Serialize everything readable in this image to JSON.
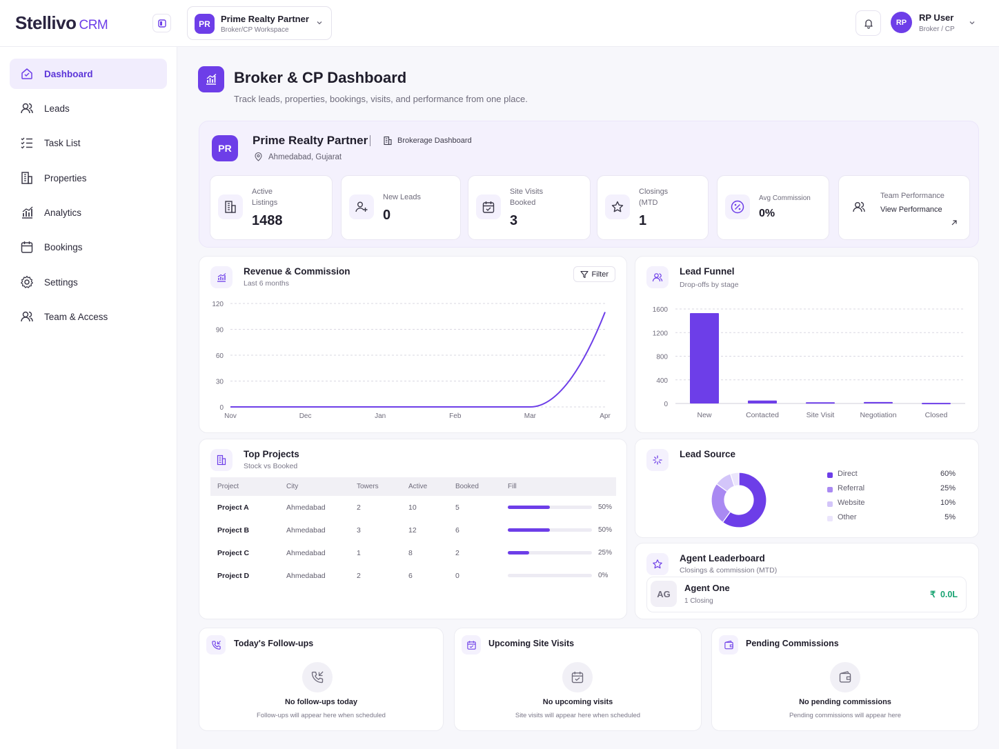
{
  "app": {
    "logo_main": "Stellivo",
    "logo_suffix": "CRM"
  },
  "workspace": {
    "initials": "PR",
    "name": "Prime Realty Partner",
    "subtitle": "Broker/CP Workspace"
  },
  "user": {
    "initials": "RP",
    "name": "RP User",
    "role": "Broker / CP"
  },
  "sidebar": {
    "items": [
      {
        "label": "Dashboard",
        "icon": "dashboard-icon",
        "active": true
      },
      {
        "label": "Leads",
        "icon": "users-icon"
      },
      {
        "label": "Task List",
        "icon": "task-list-icon"
      },
      {
        "label": "Properties",
        "icon": "building-icon"
      },
      {
        "label": "Analytics",
        "icon": "chart-icon"
      },
      {
        "label": "Bookings",
        "icon": "calendar-icon"
      },
      {
        "label": "Settings",
        "icon": "gear-icon"
      },
      {
        "label": "Team & Access",
        "icon": "team-icon"
      }
    ]
  },
  "page": {
    "title": "Broker & CP Dashboard",
    "subtitle": "Track leads, properties, bookings, visits, and performance from one place."
  },
  "org": {
    "initials": "PR",
    "name": "Prime Realty Partner",
    "dashboard_label": "Brokerage Dashboard",
    "location": "Ahmedabad, Gujarat"
  },
  "stats": [
    {
      "label_line1": "Active",
      "label_line2": "Listings",
      "value": "1488"
    },
    {
      "label_line1": "New Leads",
      "label_line2": "",
      "value": "0"
    },
    {
      "label_line1": "Site Visits",
      "label_line2": "Booked",
      "value": "3"
    },
    {
      "label_line1": "Closings",
      "label_line2": "(MTD",
      "value": "1"
    },
    {
      "label_line1": "Avg Commission",
      "label_line2": "",
      "value": "0%"
    },
    {
      "label_line1": "Team Performance",
      "label_line2": "View Performance",
      "value": ""
    }
  ],
  "revenue": {
    "title": "Revenue & Commission",
    "subtitle": "Last 6 months",
    "filter_label": "Filter"
  },
  "funnel": {
    "title": "Lead Funnel",
    "subtitle": "Drop-offs by stage"
  },
  "top_projects": {
    "title": "Top Projects",
    "subtitle": "Stock vs Booked",
    "columns": [
      "Project",
      "City",
      "Towers",
      "Active",
      "Booked",
      "Fill"
    ],
    "rows": [
      {
        "project": "Project A",
        "city": "Ahmedabad",
        "towers": "2",
        "active": "10",
        "booked": "5",
        "fill": 50,
        "fill_label": "50%"
      },
      {
        "project": "Project B",
        "city": "Ahmedabad",
        "towers": "3",
        "active": "12",
        "booked": "6",
        "fill": 50,
        "fill_label": "50%"
      },
      {
        "project": "Project C",
        "city": "Ahmedabad",
        "towers": "1",
        "active": "8",
        "booked": "2",
        "fill": 25,
        "fill_label": "25%"
      },
      {
        "project": "Project D",
        "city": "Ahmedabad",
        "towers": "2",
        "active": "6",
        "booked": "0",
        "fill": 0,
        "fill_label": "0%"
      }
    ]
  },
  "lead_source": {
    "title": "Lead Source",
    "legend": [
      {
        "name": "Direct",
        "pct": "60%"
      },
      {
        "name": "Referral",
        "pct": "25%"
      },
      {
        "name": "Website",
        "pct": "10%"
      },
      {
        "name": "Other",
        "pct": "5%"
      }
    ]
  },
  "leaderboard": {
    "title": "Agent Leaderboard",
    "subtitle": "Closings & commission (MTD)",
    "agent": {
      "initials": "AG",
      "name": "Agent One",
      "closings": "1 Closing",
      "amount": "0.0L",
      "currency": "₹"
    }
  },
  "followups": {
    "title": "Today's Follow-ups",
    "empty_title": "No follow-ups today",
    "empty_sub": "Follow-ups will appear here when scheduled"
  },
  "site_visits": {
    "title": "Upcoming Site Visits",
    "empty_title": "No upcoming visits",
    "empty_sub": "Site visits will appear here when scheduled"
  },
  "commissions": {
    "title": "Pending Commissions",
    "empty_title": "No pending commissions",
    "empty_sub": "Pending commissions will appear here"
  },
  "chart_data": [
    {
      "type": "line",
      "title": "Revenue & Commission",
      "categories": [
        "Nov",
        "Dec",
        "Jan",
        "Feb",
        "Mar",
        "Apr"
      ],
      "series": [
        {
          "values": [
            0,
            0,
            0,
            0,
            0,
            110
          ]
        }
      ],
      "ylim": [
        0,
        120
      ],
      "yticks": [
        0,
        30,
        60,
        90,
        120
      ],
      "grid": true,
      "color": "#6d3ee8"
    },
    {
      "type": "bar",
      "title": "Lead Funnel",
      "categories": [
        "New",
        "Contacted",
        "Site Visit",
        "Negotiation",
        "Closed"
      ],
      "values": [
        1530,
        50,
        20,
        25,
        10
      ],
      "ylim": [
        0,
        1600
      ],
      "yticks": [
        0,
        400,
        800,
        1200,
        1600
      ],
      "grid": true,
      "color": "#6d3ee8"
    },
    {
      "type": "pie",
      "title": "Lead Source",
      "donut": true,
      "categories": [
        "Direct",
        "Referral",
        "Website",
        "Other"
      ],
      "values": [
        60,
        25,
        10,
        5
      ],
      "colors": [
        "#6d3ee8",
        "#a989f2",
        "#d3c5f9",
        "#ebe5fc"
      ]
    }
  ]
}
